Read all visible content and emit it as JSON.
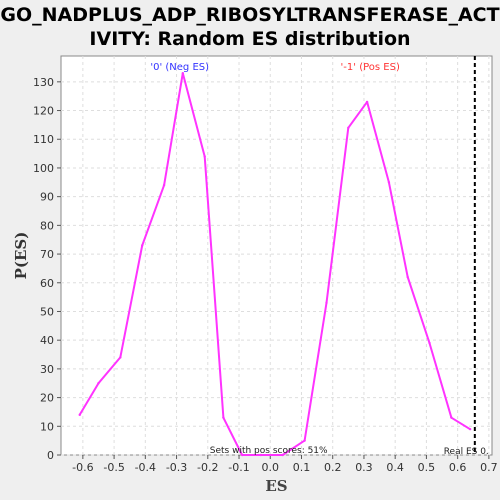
{
  "title_line1": "GO_NADPLUS_ADP_RIBOSYLTRANSFERASE_ACT",
  "title_line2": "IVITY: Random ES distribution",
  "chart_data": {
    "type": "line",
    "xlabel": "ES",
    "ylabel": "P(ES)",
    "xlim": [
      -0.67,
      0.71
    ],
    "ylim": [
      0,
      139
    ],
    "xticks": [
      "-0.6",
      "-0.5",
      "-0.4",
      "-0.3",
      "-0.2",
      "-0.1",
      "0.0",
      "0.1",
      "0.2",
      "0.3",
      "0.4",
      "0.5",
      "0.6",
      "0.7"
    ],
    "yticks": [
      "0",
      "10",
      "20",
      "30",
      "40",
      "50",
      "60",
      "70",
      "80",
      "90",
      "100",
      "110",
      "120",
      "130"
    ],
    "grid": true,
    "series": [
      {
        "color": "#ff33ff",
        "x": [
          -0.61,
          -0.55,
          -0.48,
          -0.41,
          -0.34,
          -0.28,
          -0.21,
          -0.15,
          -0.09,
          -0.03,
          0.04,
          0.11,
          0.18,
          0.25,
          0.31,
          0.38,
          0.44,
          0.51,
          0.58,
          0.64
        ],
        "y": [
          14,
          25,
          34,
          73,
          94,
          133,
          104,
          13,
          0,
          0,
          0,
          5,
          53,
          114,
          123,
          95,
          62,
          39,
          13,
          9
        ]
      }
    ],
    "annotations": {
      "neg_label": "'0' (Neg ES)",
      "pos_label": "'-1' (Pos ES)",
      "pos_scores": "Sets with pos scores: 51%",
      "real_es_label": "Real ES 0.",
      "real_es_x": 0.655
    },
    "colors": {
      "neg": "#3333ff",
      "pos": "#ff3333",
      "line": "#ff33ff",
      "plot_bg": "#ffffff"
    }
  }
}
